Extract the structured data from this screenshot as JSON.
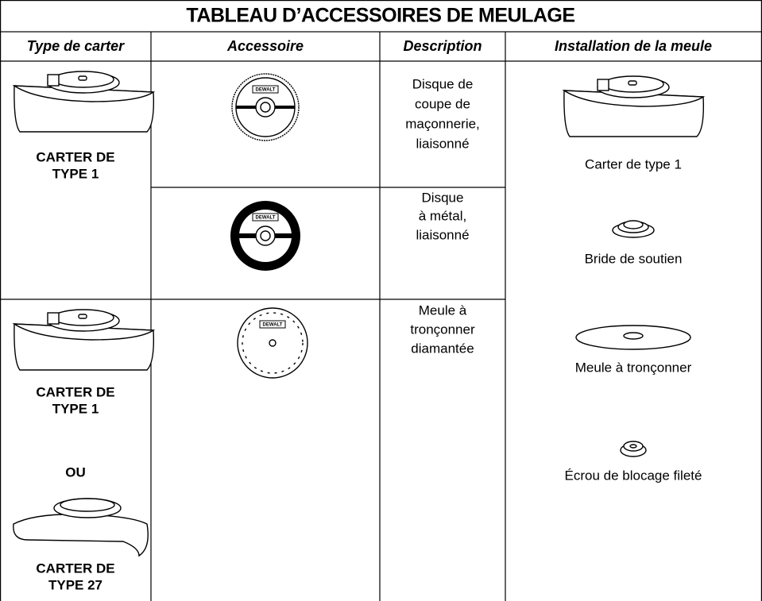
{
  "table": {
    "title": "TABLEAU D’ACCESSOIRES DE MEULAGE",
    "headers": [
      "Type de carter",
      "Accessoire",
      "Description",
      "Installation de la meule"
    ],
    "guard_labels": [
      [
        "CARTER DE",
        "TYPE 1"
      ],
      [
        "CARTER DE",
        "TYPE 1"
      ],
      [
        "CARTER DE",
        "TYPE 27"
      ]
    ],
    "or": "OU",
    "brand": "DEWALT",
    "descriptions": [
      [
        "Disque de",
        "coupe de",
        "maçonnerie,",
        "liaisonné"
      ],
      [
        "Disque",
        "à métal,",
        "liaisonné"
      ],
      [
        "Meule à",
        "tronçonner",
        "diamantée"
      ]
    ],
    "installation": [
      "Carter de type 1",
      "Bride de soutien",
      "Meule à tronçonner",
      "Écrou de blocage fileté"
    ]
  }
}
